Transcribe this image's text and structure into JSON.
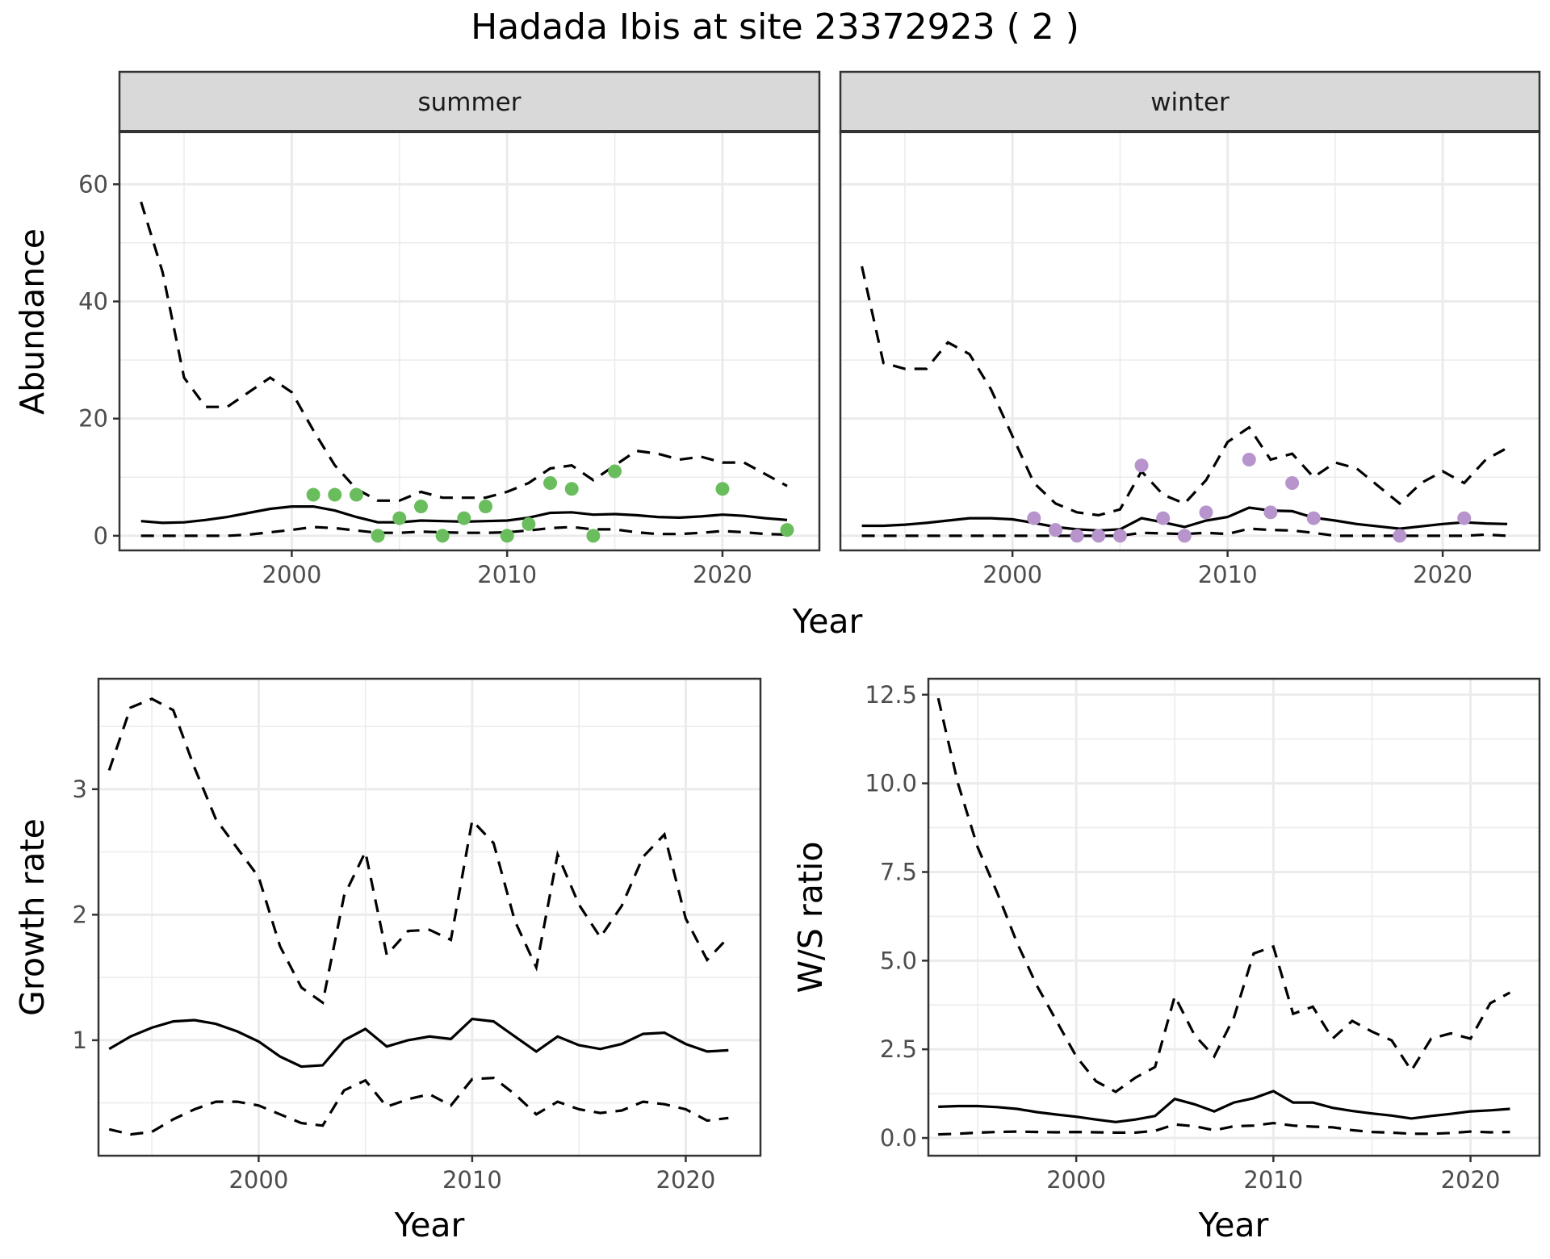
{
  "title": "Hadada Ibis at site 23372923 ( 2 )",
  "colors": {
    "summer_points": "#6abd5d",
    "winter_points": "#b794cb",
    "line": "#000000",
    "strip_bg": "#d9d9d9"
  },
  "chart_data": [
    {
      "type": "line",
      "panel": "summer",
      "strip_label": "summer",
      "xlabel": "Year",
      "ylabel": "Abundance",
      "xlim": [
        1992,
        2024.5
      ],
      "ylim": [
        -2.5,
        69
      ],
      "xticks": [
        2000,
        2010,
        2020
      ],
      "yticks": [
        0,
        20,
        40,
        60
      ],
      "x": [
        1993,
        1994,
        1995,
        1996,
        1997,
        1998,
        1999,
        2000,
        2001,
        2002,
        2003,
        2004,
        2005,
        2006,
        2007,
        2008,
        2009,
        2010,
        2011,
        2012,
        2013,
        2014,
        2015,
        2016,
        2017,
        2018,
        2019,
        2020,
        2021,
        2022,
        2023
      ],
      "series": [
        {
          "style": "dashed",
          "values": [
            57,
            45,
            27,
            22,
            22,
            24.5,
            27,
            24.5,
            18,
            12,
            8,
            6,
            6,
            7.5,
            6.5,
            6.5,
            6.5,
            7.5,
            9,
            11.5,
            12,
            9.5,
            12,
            14.5,
            14,
            13,
            13.5,
            12.5,
            12.5,
            10.5,
            8.5
          ]
        },
        {
          "style": "solid",
          "values": [
            2.5,
            2.2,
            2.3,
            2.7,
            3.2,
            3.9,
            4.6,
            5.0,
            5.0,
            4.3,
            3.2,
            2.3,
            2.3,
            2.6,
            2.5,
            2.4,
            2.5,
            2.6,
            3.1,
            3.9,
            4.0,
            3.6,
            3.7,
            3.5,
            3.2,
            3.1,
            3.3,
            3.6,
            3.4,
            3.0,
            2.7
          ]
        },
        {
          "style": "dashed",
          "values": [
            0,
            0,
            0,
            0,
            0,
            0.2,
            0.6,
            1.0,
            1.5,
            1.3,
            0.9,
            0.5,
            0.5,
            0.7,
            0.6,
            0.5,
            0.5,
            0.6,
            0.9,
            1.3,
            1.5,
            1.1,
            1.1,
            0.6,
            0.3,
            0.3,
            0.5,
            0.8,
            0.6,
            0.3,
            0.2
          ]
        }
      ],
      "points": {
        "x": [
          2001,
          2002,
          2003,
          2004,
          2005,
          2006,
          2007,
          2008,
          2009,
          2010,
          2011,
          2012,
          2013,
          2014,
          2015,
          2020,
          2023
        ],
        "y": [
          7,
          7,
          7,
          0,
          3,
          5,
          0,
          3,
          5,
          0,
          2,
          9,
          8,
          0,
          11,
          8,
          1
        ]
      }
    },
    {
      "type": "line",
      "panel": "winter",
      "strip_label": "winter",
      "xlabel": "Year",
      "ylabel": "Abundance",
      "xlim": [
        1992,
        2024.5
      ],
      "ylim": [
        -2.5,
        69
      ],
      "xticks": [
        2000,
        2010,
        2020
      ],
      "yticks": [
        0,
        20,
        40,
        60
      ],
      "x": [
        1993,
        1994,
        1995,
        1996,
        1997,
        1998,
        1999,
        2000,
        2001,
        2002,
        2003,
        2004,
        2005,
        2006,
        2007,
        2008,
        2009,
        2010,
        2011,
        2012,
        2013,
        2014,
        2015,
        2016,
        2017,
        2018,
        2019,
        2020,
        2021,
        2022,
        2023
      ],
      "series": [
        {
          "style": "dashed",
          "values": [
            46,
            29.5,
            28.5,
            28.5,
            33,
            31,
            25,
            17,
            9,
            5.5,
            4,
            3.5,
            4.5,
            11,
            7,
            5.5,
            9.5,
            16,
            18.5,
            13,
            14,
            10,
            12.5,
            11.5,
            8.5,
            5.5,
            9,
            11,
            9,
            13,
            15
          ]
        },
        {
          "style": "solid",
          "values": [
            1.7,
            1.7,
            1.9,
            2.2,
            2.6,
            3.0,
            3.0,
            2.8,
            2.2,
            1.5,
            1.1,
            0.9,
            1.1,
            3.0,
            2.3,
            1.5,
            2.6,
            3.2,
            4.8,
            4.3,
            4.2,
            3.1,
            2.6,
            2.0,
            1.6,
            1.2,
            1.6,
            2.0,
            2.3,
            2.1,
            2.0
          ]
        },
        {
          "style": "dashed",
          "values": [
            0,
            0,
            0,
            0,
            0,
            0,
            0,
            0,
            0,
            0,
            0,
            0,
            0,
            0.5,
            0.4,
            0.3,
            0.5,
            0.3,
            1.2,
            1.0,
            0.9,
            0.5,
            0,
            0,
            0,
            0,
            0,
            0,
            0,
            0.2,
            0
          ]
        }
      ],
      "points": {
        "x": [
          2001,
          2002,
          2003,
          2004,
          2005,
          2006,
          2007,
          2008,
          2009,
          2011,
          2012,
          2013,
          2014,
          2018,
          2021
        ],
        "y": [
          3,
          1,
          0,
          0,
          0,
          12,
          3,
          0,
          4,
          13,
          4,
          9,
          3,
          0,
          3
        ]
      }
    },
    {
      "type": "line",
      "panel": "growth",
      "xlabel": "Year",
      "ylabel": "Growth rate",
      "xlim": [
        1992.5,
        2023.5
      ],
      "ylim": [
        0.08,
        3.88
      ],
      "xticks": [
        2000,
        2010,
        2020
      ],
      "yticks": [
        1,
        2,
        3
      ],
      "x": [
        1993,
        1994,
        1995,
        1996,
        1997,
        1998,
        1999,
        2000,
        2001,
        2002,
        2003,
        2004,
        2005,
        2006,
        2007,
        2008,
        2009,
        2010,
        2011,
        2012,
        2013,
        2014,
        2015,
        2016,
        2017,
        2018,
        2019,
        2020,
        2021,
        2022
      ],
      "series": [
        {
          "style": "dashed",
          "values": [
            3.15,
            3.65,
            3.72,
            3.63,
            3.17,
            2.76,
            2.53,
            2.3,
            1.75,
            1.42,
            1.3,
            2.15,
            2.5,
            1.68,
            1.87,
            1.88,
            1.8,
            2.75,
            2.57,
            1.95,
            1.58,
            2.48,
            2.08,
            1.82,
            2.07,
            2.46,
            2.64,
            1.97,
            1.64,
            1.82
          ]
        },
        {
          "style": "solid",
          "values": [
            0.93,
            1.03,
            1.1,
            1.15,
            1.16,
            1.13,
            1.07,
            0.99,
            0.87,
            0.79,
            0.8,
            1.0,
            1.09,
            0.95,
            1.0,
            1.03,
            1.01,
            1.17,
            1.15,
            1.03,
            0.91,
            1.03,
            0.96,
            0.93,
            0.97,
            1.05,
            1.06,
            0.97,
            0.91,
            0.92
          ]
        },
        {
          "style": "dashed",
          "values": [
            0.29,
            0.25,
            0.27,
            0.37,
            0.45,
            0.51,
            0.51,
            0.48,
            0.41,
            0.34,
            0.32,
            0.6,
            0.68,
            0.47,
            0.53,
            0.57,
            0.48,
            0.69,
            0.7,
            0.57,
            0.41,
            0.51,
            0.45,
            0.42,
            0.44,
            0.51,
            0.49,
            0.45,
            0.36,
            0.38
          ]
        }
      ]
    },
    {
      "type": "line",
      "panel": "ws_ratio",
      "xlabel": "Year",
      "ylabel": "W/S ratio",
      "xlim": [
        1992.5,
        2023.5
      ],
      "ylim": [
        -0.5,
        12.95
      ],
      "xticks": [
        2000,
        2010,
        2020
      ],
      "yticks": [
        0.0,
        2.5,
        5.0,
        7.5,
        10.0,
        12.5
      ],
      "ytick_labels": [
        "0.0",
        "2.5",
        "5.0",
        "7.5",
        "10.0",
        "12.5"
      ],
      "x": [
        1993,
        1994,
        1995,
        1996,
        1997,
        1998,
        1999,
        2000,
        2001,
        2002,
        2003,
        2004,
        2005,
        2006,
        2007,
        2008,
        2009,
        2010,
        2011,
        2012,
        2013,
        2014,
        2015,
        2016,
        2017,
        2018,
        2019,
        2020,
        2021,
        2022
      ],
      "series": [
        {
          "style": "dashed",
          "values": [
            12.4,
            10,
            8.2,
            6.9,
            5.5,
            4.3,
            3.3,
            2.3,
            1.6,
            1.3,
            1.7,
            2.0,
            4.0,
            2.9,
            2.3,
            3.4,
            5.2,
            5.4,
            3.5,
            3.7,
            2.8,
            3.3,
            3.0,
            2.75,
            1.9,
            2.8,
            2.95,
            2.8,
            3.8,
            4.1
          ]
        },
        {
          "style": "solid",
          "values": [
            0.88,
            0.9,
            0.9,
            0.87,
            0.82,
            0.73,
            0.66,
            0.6,
            0.52,
            0.45,
            0.52,
            0.62,
            1.1,
            0.95,
            0.75,
            1.0,
            1.12,
            1.32,
            1.0,
            1.0,
            0.85,
            0.76,
            0.69,
            0.63,
            0.55,
            0.62,
            0.68,
            0.75,
            0.78,
            0.82
          ]
        },
        {
          "style": "dashed",
          "values": [
            0.1,
            0.12,
            0.15,
            0.17,
            0.18,
            0.17,
            0.16,
            0.17,
            0.16,
            0.15,
            0.15,
            0.2,
            0.38,
            0.33,
            0.22,
            0.33,
            0.35,
            0.42,
            0.35,
            0.32,
            0.3,
            0.22,
            0.17,
            0.15,
            0.12,
            0.12,
            0.14,
            0.18,
            0.16,
            0.17
          ]
        }
      ]
    }
  ]
}
